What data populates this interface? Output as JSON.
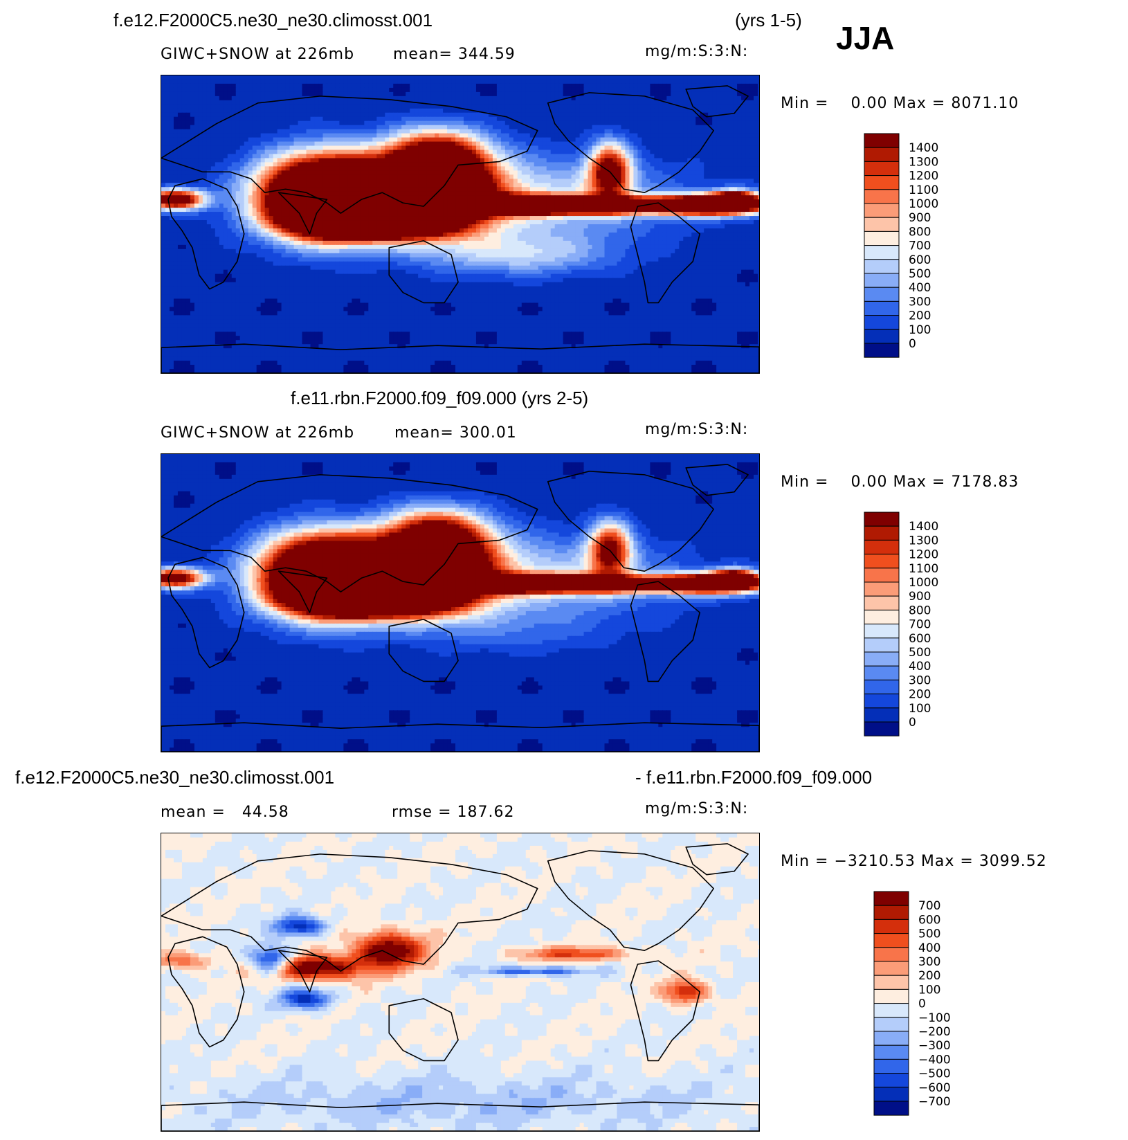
{
  "season": "JJA",
  "units": "mg/m:S:3:N:",
  "chart_data": [
    {
      "type": "heatmap",
      "title": "f.e12.F2000C5.ne30_ne30.climosst.001",
      "years": "(yrs 1-5)",
      "left_label": "GIWC+SNOW at 226mb",
      "mean_label": "mean=",
      "mean": "344.59",
      "units": "mg/m:S:3:N:",
      "min_label": "Min =",
      "min": "0.00",
      "max_label": "Max =",
      "max": "8071.10",
      "colorbar_levels": [
        "1400",
        "1300",
        "1200",
        "1100",
        "1000",
        "900",
        "800",
        "700",
        "600",
        "500",
        "400",
        "300",
        "200",
        "100",
        "0"
      ],
      "colorbar_colors": [
        "#7f0000",
        "#b01a02",
        "#d42f0c",
        "#f04f1e",
        "#f8744a",
        "#fb9c78",
        "#fdc4a9",
        "#feeee0",
        "#d8e8fb",
        "#b4cdfa",
        "#89adf7",
        "#5a8af2",
        "#3166ea",
        "#1447dc",
        "#042fb8",
        "#000f88"
      ]
    },
    {
      "type": "heatmap",
      "title": "f.e11.rbn.F2000.f09_f09.000 (yrs 2-5)",
      "left_label": "GIWC+SNOW at 226mb",
      "mean_label": "mean=",
      "mean": "300.01",
      "units": "mg/m:S:3:N:",
      "min_label": "Min =",
      "min": "0.00",
      "max_label": "Max =",
      "max": "7178.83",
      "colorbar_levels": [
        "1400",
        "1300",
        "1200",
        "1100",
        "1000",
        "900",
        "800",
        "700",
        "600",
        "500",
        "400",
        "300",
        "200",
        "100",
        "0"
      ],
      "colorbar_colors": [
        "#7f0000",
        "#b01a02",
        "#d42f0c",
        "#f04f1e",
        "#f8744a",
        "#fb9c78",
        "#fdc4a9",
        "#feeee0",
        "#d8e8fb",
        "#b4cdfa",
        "#89adf7",
        "#5a8af2",
        "#3166ea",
        "#1447dc",
        "#042fb8",
        "#000f88"
      ]
    },
    {
      "type": "heatmap",
      "title_left": "f.e12.F2000C5.ne30_ne30.climosst.001",
      "title_right": "- f.e11.rbn.F2000.f09_f09.000",
      "mean_label": "mean =",
      "mean": "44.58",
      "rmse_label": "rmse =",
      "rmse": "187.62",
      "units": "mg/m:S:3:N:",
      "min_label": "Min =",
      "min": "−3210.53",
      "max_label": "Max =",
      "max": "3099.52",
      "colorbar_levels": [
        "700",
        "600",
        "500",
        "400",
        "300",
        "200",
        "100",
        "0",
        "−100",
        "−200",
        "−300",
        "−400",
        "−500",
        "−600",
        "−700"
      ],
      "colorbar_colors": [
        "#7f0000",
        "#b01a02",
        "#d42f0c",
        "#f04f1e",
        "#f8744a",
        "#fb9c78",
        "#fdc4a9",
        "#feeee0",
        "#d8e8fb",
        "#b4cdfa",
        "#89adf7",
        "#5a8af2",
        "#3166ea",
        "#1447dc",
        "#042fb8",
        "#000f88"
      ]
    }
  ]
}
